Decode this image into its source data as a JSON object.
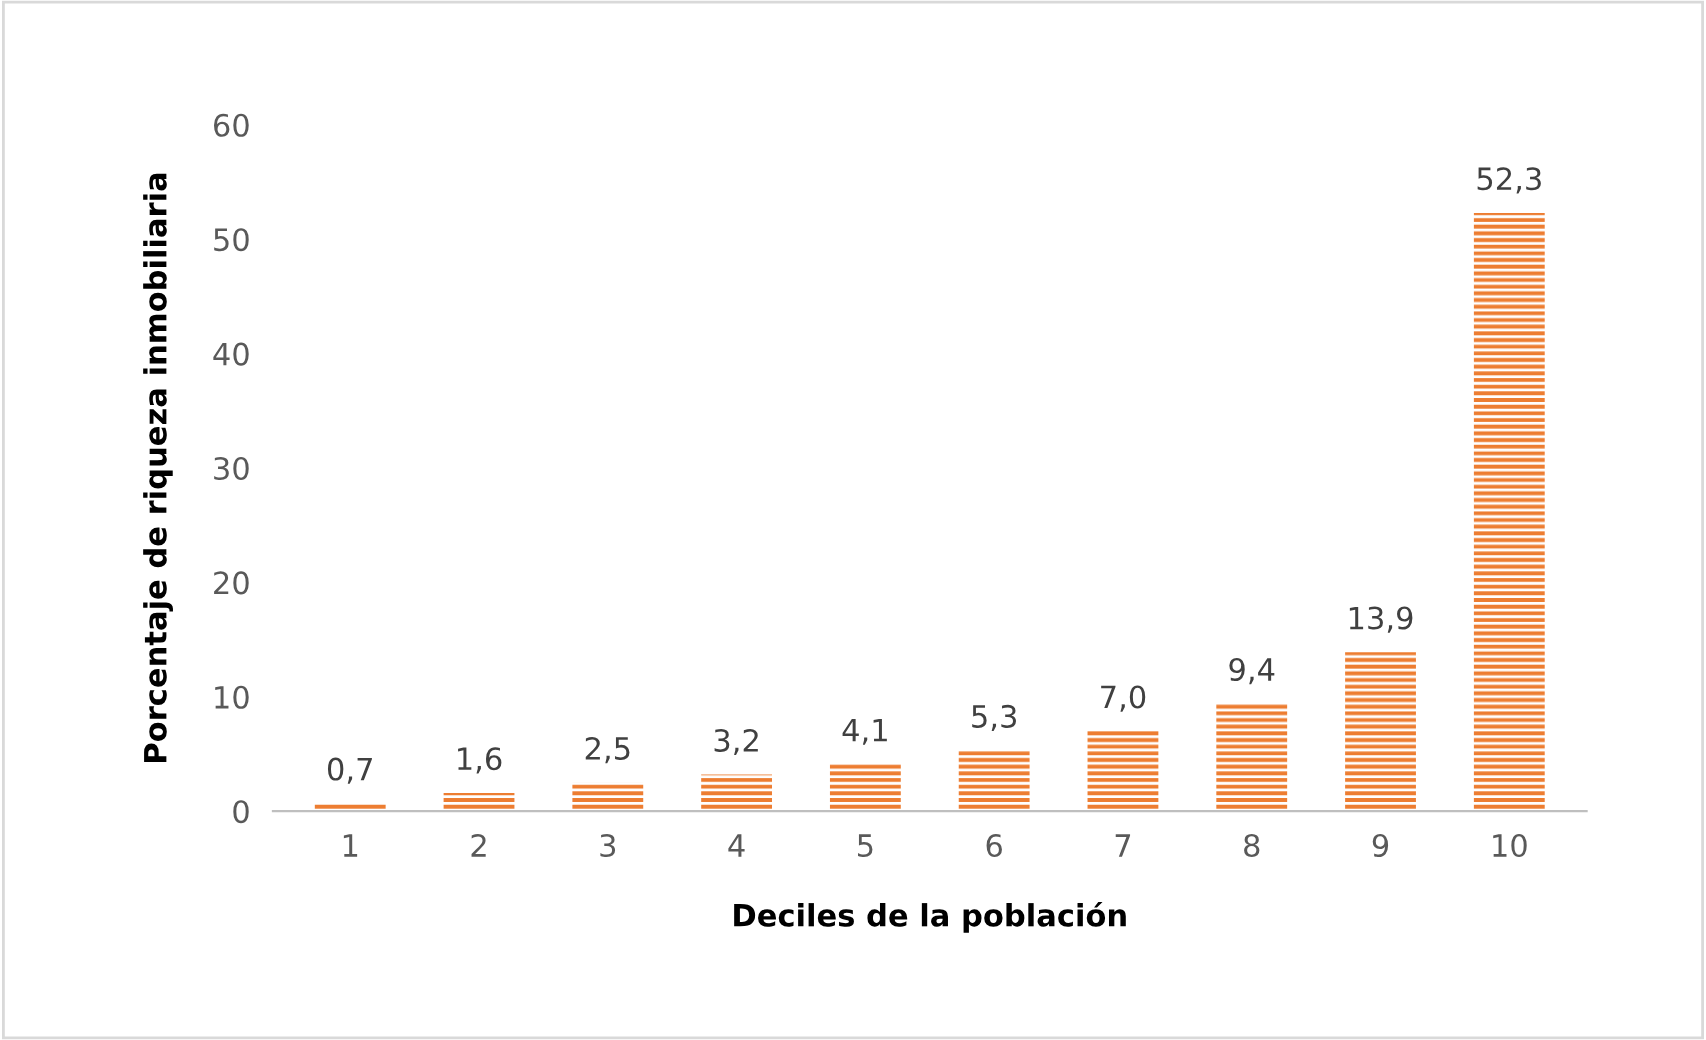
{
  "chart_data": {
    "type": "bar",
    "xlabel": "Deciles de la población",
    "ylabel": "Porcentaje de riqueza inmobiliaria",
    "categories": [
      "1",
      "2",
      "3",
      "4",
      "5",
      "6",
      "7",
      "8",
      "9",
      "10"
    ],
    "values": [
      0.7,
      1.6,
      2.5,
      3.2,
      4.1,
      5.3,
      7.0,
      9.4,
      13.9,
      52.3
    ],
    "value_labels": [
      "0,7",
      "1,6",
      "2,5",
      "3,2",
      "4,1",
      "5,3",
      "7,0",
      "9,4",
      "13,9",
      "52,3"
    ],
    "color": "#ed7d31",
    "ylim": [
      0,
      60
    ],
    "yticks": [
      0,
      10,
      20,
      30,
      40,
      50,
      60
    ],
    "grid": false,
    "legend": false
  }
}
